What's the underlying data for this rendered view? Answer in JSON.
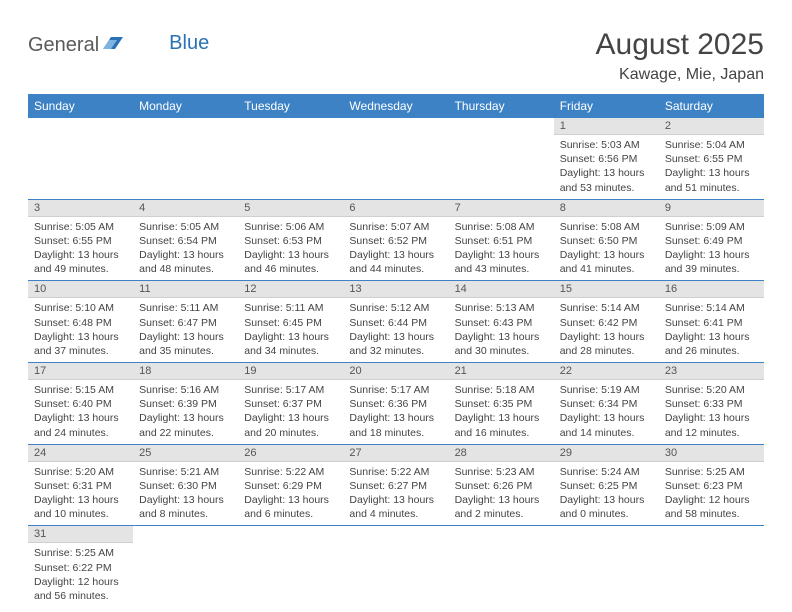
{
  "logo": {
    "part1": "General",
    "part2": "Blue"
  },
  "title": "August 2025",
  "location": "Kawage, Mie, Japan",
  "colors": {
    "header_bg": "#3d82c4",
    "header_text": "#ffffff",
    "daynum_bg": "#e4e4e4",
    "row_border": "#3d82c4",
    "logo_blue": "#2a72b5",
    "logo_gray": "#5a5a5a"
  },
  "weekdays": [
    "Sunday",
    "Monday",
    "Tuesday",
    "Wednesday",
    "Thursday",
    "Friday",
    "Saturday"
  ],
  "weeks": [
    [
      null,
      null,
      null,
      null,
      null,
      {
        "n": "1",
        "sr": "5:03 AM",
        "ss": "6:56 PM",
        "dl": "13 hours and 53 minutes."
      },
      {
        "n": "2",
        "sr": "5:04 AM",
        "ss": "6:55 PM",
        "dl": "13 hours and 51 minutes."
      }
    ],
    [
      {
        "n": "3",
        "sr": "5:05 AM",
        "ss": "6:55 PM",
        "dl": "13 hours and 49 minutes."
      },
      {
        "n": "4",
        "sr": "5:05 AM",
        "ss": "6:54 PM",
        "dl": "13 hours and 48 minutes."
      },
      {
        "n": "5",
        "sr": "5:06 AM",
        "ss": "6:53 PM",
        "dl": "13 hours and 46 minutes."
      },
      {
        "n": "6",
        "sr": "5:07 AM",
        "ss": "6:52 PM",
        "dl": "13 hours and 44 minutes."
      },
      {
        "n": "7",
        "sr": "5:08 AM",
        "ss": "6:51 PM",
        "dl": "13 hours and 43 minutes."
      },
      {
        "n": "8",
        "sr": "5:08 AM",
        "ss": "6:50 PM",
        "dl": "13 hours and 41 minutes."
      },
      {
        "n": "9",
        "sr": "5:09 AM",
        "ss": "6:49 PM",
        "dl": "13 hours and 39 minutes."
      }
    ],
    [
      {
        "n": "10",
        "sr": "5:10 AM",
        "ss": "6:48 PM",
        "dl": "13 hours and 37 minutes."
      },
      {
        "n": "11",
        "sr": "5:11 AM",
        "ss": "6:47 PM",
        "dl": "13 hours and 35 minutes."
      },
      {
        "n": "12",
        "sr": "5:11 AM",
        "ss": "6:45 PM",
        "dl": "13 hours and 34 minutes."
      },
      {
        "n": "13",
        "sr": "5:12 AM",
        "ss": "6:44 PM",
        "dl": "13 hours and 32 minutes."
      },
      {
        "n": "14",
        "sr": "5:13 AM",
        "ss": "6:43 PM",
        "dl": "13 hours and 30 minutes."
      },
      {
        "n": "15",
        "sr": "5:14 AM",
        "ss": "6:42 PM",
        "dl": "13 hours and 28 minutes."
      },
      {
        "n": "16",
        "sr": "5:14 AM",
        "ss": "6:41 PM",
        "dl": "13 hours and 26 minutes."
      }
    ],
    [
      {
        "n": "17",
        "sr": "5:15 AM",
        "ss": "6:40 PM",
        "dl": "13 hours and 24 minutes."
      },
      {
        "n": "18",
        "sr": "5:16 AM",
        "ss": "6:39 PM",
        "dl": "13 hours and 22 minutes."
      },
      {
        "n": "19",
        "sr": "5:17 AM",
        "ss": "6:37 PM",
        "dl": "13 hours and 20 minutes."
      },
      {
        "n": "20",
        "sr": "5:17 AM",
        "ss": "6:36 PM",
        "dl": "13 hours and 18 minutes."
      },
      {
        "n": "21",
        "sr": "5:18 AM",
        "ss": "6:35 PM",
        "dl": "13 hours and 16 minutes."
      },
      {
        "n": "22",
        "sr": "5:19 AM",
        "ss": "6:34 PM",
        "dl": "13 hours and 14 minutes."
      },
      {
        "n": "23",
        "sr": "5:20 AM",
        "ss": "6:33 PM",
        "dl": "13 hours and 12 minutes."
      }
    ],
    [
      {
        "n": "24",
        "sr": "5:20 AM",
        "ss": "6:31 PM",
        "dl": "13 hours and 10 minutes."
      },
      {
        "n": "25",
        "sr": "5:21 AM",
        "ss": "6:30 PM",
        "dl": "13 hours and 8 minutes."
      },
      {
        "n": "26",
        "sr": "5:22 AM",
        "ss": "6:29 PM",
        "dl": "13 hours and 6 minutes."
      },
      {
        "n": "27",
        "sr": "5:22 AM",
        "ss": "6:27 PM",
        "dl": "13 hours and 4 minutes."
      },
      {
        "n": "28",
        "sr": "5:23 AM",
        "ss": "6:26 PM",
        "dl": "13 hours and 2 minutes."
      },
      {
        "n": "29",
        "sr": "5:24 AM",
        "ss": "6:25 PM",
        "dl": "13 hours and 0 minutes."
      },
      {
        "n": "30",
        "sr": "5:25 AM",
        "ss": "6:23 PM",
        "dl": "12 hours and 58 minutes."
      }
    ],
    [
      {
        "n": "31",
        "sr": "5:25 AM",
        "ss": "6:22 PM",
        "dl": "12 hours and 56 minutes."
      },
      null,
      null,
      null,
      null,
      null,
      null
    ]
  ],
  "labels": {
    "sunrise": "Sunrise:",
    "sunset": "Sunset:",
    "daylight": "Daylight:"
  }
}
